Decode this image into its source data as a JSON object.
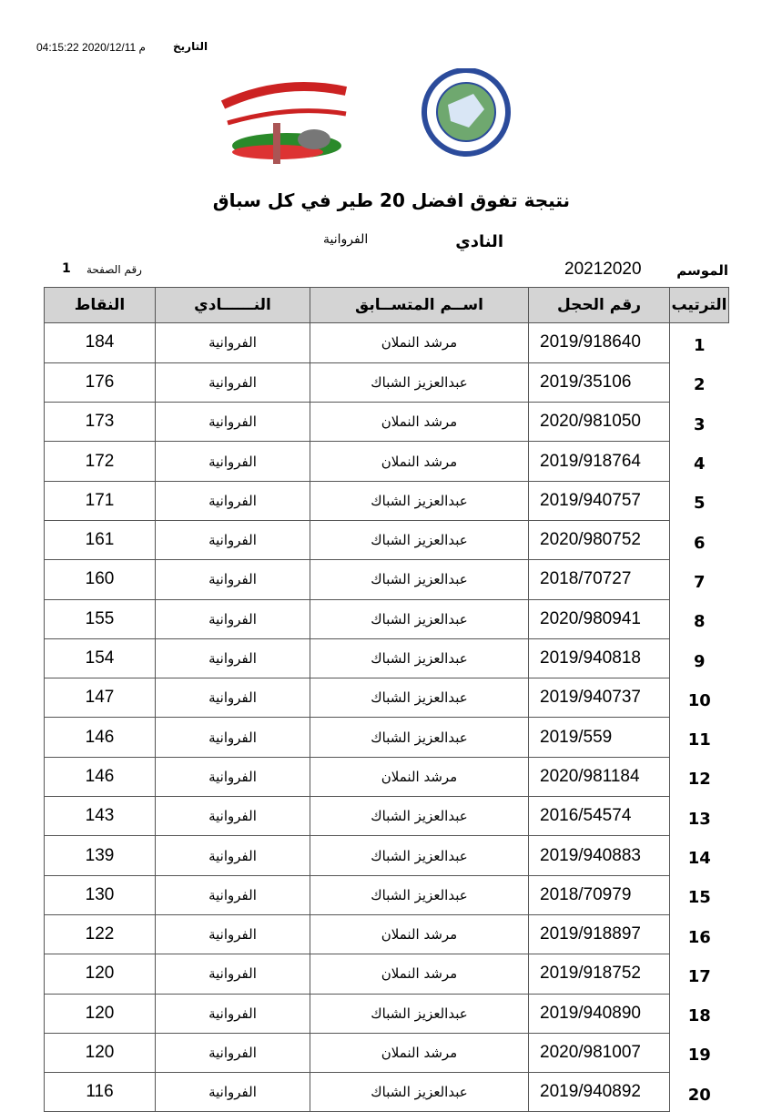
{
  "header": {
    "date_label": "التاريخ",
    "date_value": "04:15:22 2020/12/11 م",
    "title": "نتيجة تفوق  افضل 20  طير في كل سباق",
    "club_label": "النادي",
    "club_value": "الفروانية",
    "season_label": "الموسم",
    "season_value": "20212020",
    "page_label": "رقم الصفحة",
    "page_value": "1"
  },
  "table": {
    "columns": [
      "الترتيب",
      "رقم الحجل",
      "اســم المتســابق",
      "النــــــادي",
      "النقاط"
    ],
    "rows": [
      [
        1,
        "2019/918640",
        "مرشد النملان",
        "الفروانية",
        184
      ],
      [
        2,
        "2019/35106",
        "عبدالعزيز الشباك",
        "الفروانية",
        176
      ],
      [
        3,
        "2020/981050",
        "مرشد النملان",
        "الفروانية",
        173
      ],
      [
        4,
        "2019/918764",
        "مرشد النملان",
        "الفروانية",
        172
      ],
      [
        5,
        "2019/940757",
        "عبدالعزيز الشباك",
        "الفروانية",
        171
      ],
      [
        6,
        "2020/980752",
        "عبدالعزيز الشباك",
        "الفروانية",
        161
      ],
      [
        7,
        "2018/70727",
        "عبدالعزيز الشباك",
        "الفروانية",
        160
      ],
      [
        8,
        "2020/980941",
        "عبدالعزيز الشباك",
        "الفروانية",
        155
      ],
      [
        9,
        "2019/940818",
        "عبدالعزيز الشباك",
        "الفروانية",
        154
      ],
      [
        10,
        "2019/940737",
        "عبدالعزيز الشباك",
        "الفروانية",
        147
      ],
      [
        11,
        "2019/559",
        "عبدالعزيز الشباك",
        "الفروانية",
        146
      ],
      [
        12,
        "2020/981184",
        "مرشد النملان",
        "الفروانية",
        146
      ],
      [
        13,
        "2016/54574",
        "عبدالعزيز الشباك",
        "الفروانية",
        143
      ],
      [
        14,
        "2019/940883",
        "عبدالعزيز الشباك",
        "الفروانية",
        139
      ],
      [
        15,
        "2018/70979",
        "عبدالعزيز الشباك",
        "الفروانية",
        130
      ],
      [
        16,
        "2019/918897",
        "مرشد النملان",
        "الفروانية",
        122
      ],
      [
        17,
        "2019/918752",
        "مرشد النملان",
        "الفروانية",
        120
      ],
      [
        18,
        "2019/940890",
        "عبدالعزيز الشباك",
        "الفروانية",
        120
      ],
      [
        19,
        "2020/981007",
        "مرشد النملان",
        "الفروانية",
        120
      ],
      [
        20,
        "2019/940892",
        "عبدالعزيز الشباك",
        "الفروانية",
        116
      ]
    ]
  }
}
